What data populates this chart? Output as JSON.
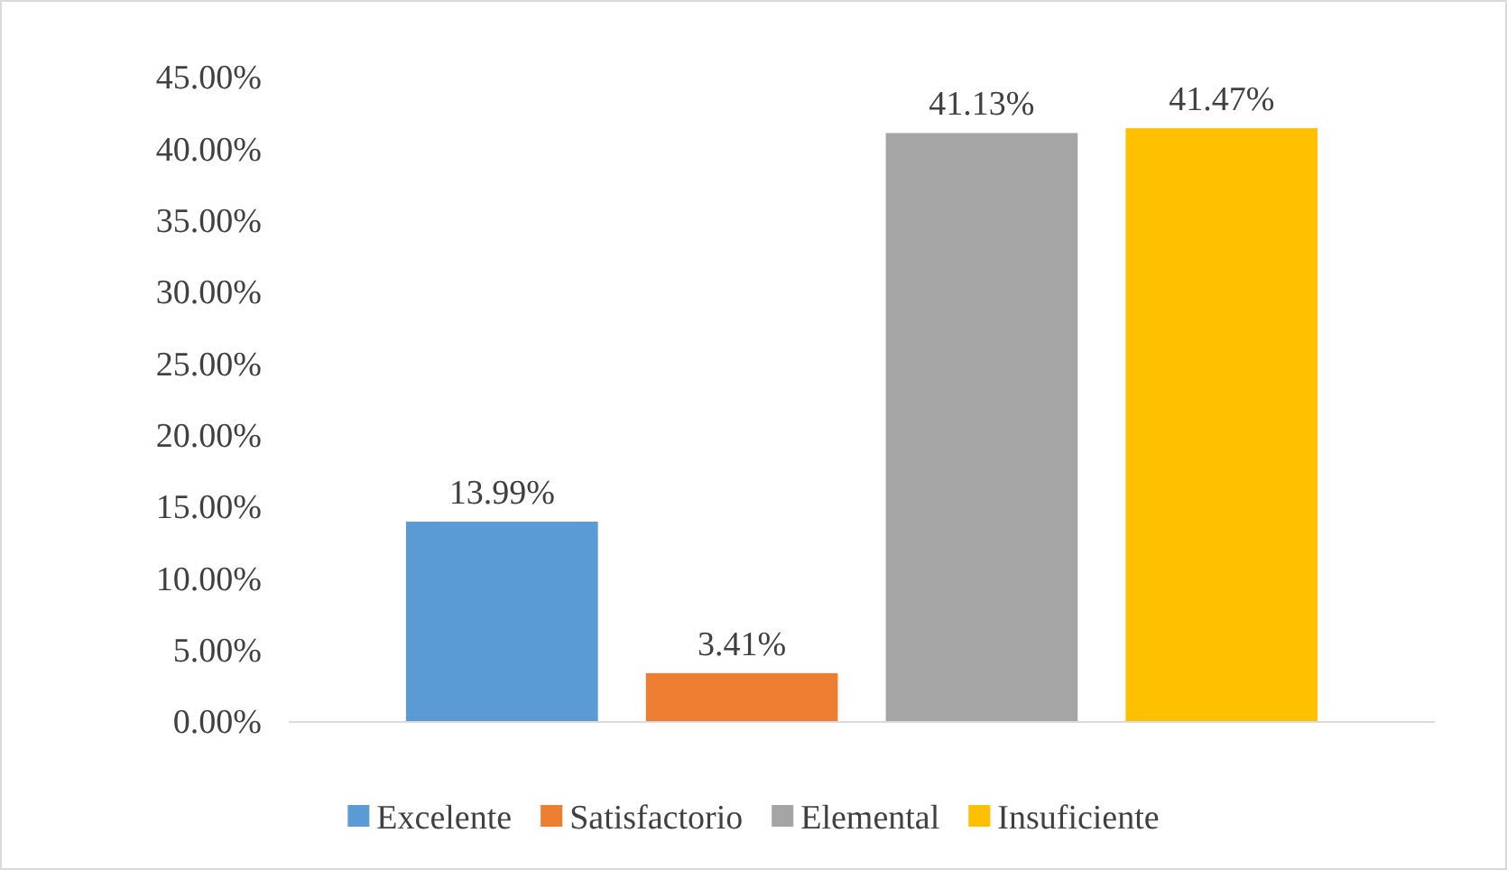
{
  "chart_data": {
    "type": "bar",
    "categories": [
      null
    ],
    "series": [
      {
        "name": "Excelente",
        "color": "#5b9bd5",
        "values": [
          13.99
        ],
        "value_labels": [
          "13.99%"
        ]
      },
      {
        "name": "Satisfactorio",
        "color": "#ed7d31",
        "values": [
          3.41
        ],
        "value_labels": [
          "3.41%"
        ]
      },
      {
        "name": "Elemental",
        "color": "#a5a5a5",
        "values": [
          41.13
        ],
        "value_labels": [
          "41.13%"
        ]
      },
      {
        "name": "Insuficiente",
        "color": "#ffc000",
        "values": [
          41.47
        ],
        "value_labels": [
          "41.47%"
        ]
      }
    ],
    "ylim": [
      0,
      45
    ],
    "yticks": [
      {
        "value": 0,
        "label": "0.00%"
      },
      {
        "value": 5,
        "label": "5.00%"
      },
      {
        "value": 10,
        "label": "10.00%"
      },
      {
        "value": 15,
        "label": "15.00%"
      },
      {
        "value": 20,
        "label": "20.00%"
      },
      {
        "value": 25,
        "label": "25.00%"
      },
      {
        "value": 30,
        "label": "30.00%"
      },
      {
        "value": 35,
        "label": "35.00%"
      },
      {
        "value": 40,
        "label": "40.00%"
      },
      {
        "value": 45,
        "label": "45.00%"
      }
    ],
    "grid": false,
    "legend": "bottom"
  }
}
